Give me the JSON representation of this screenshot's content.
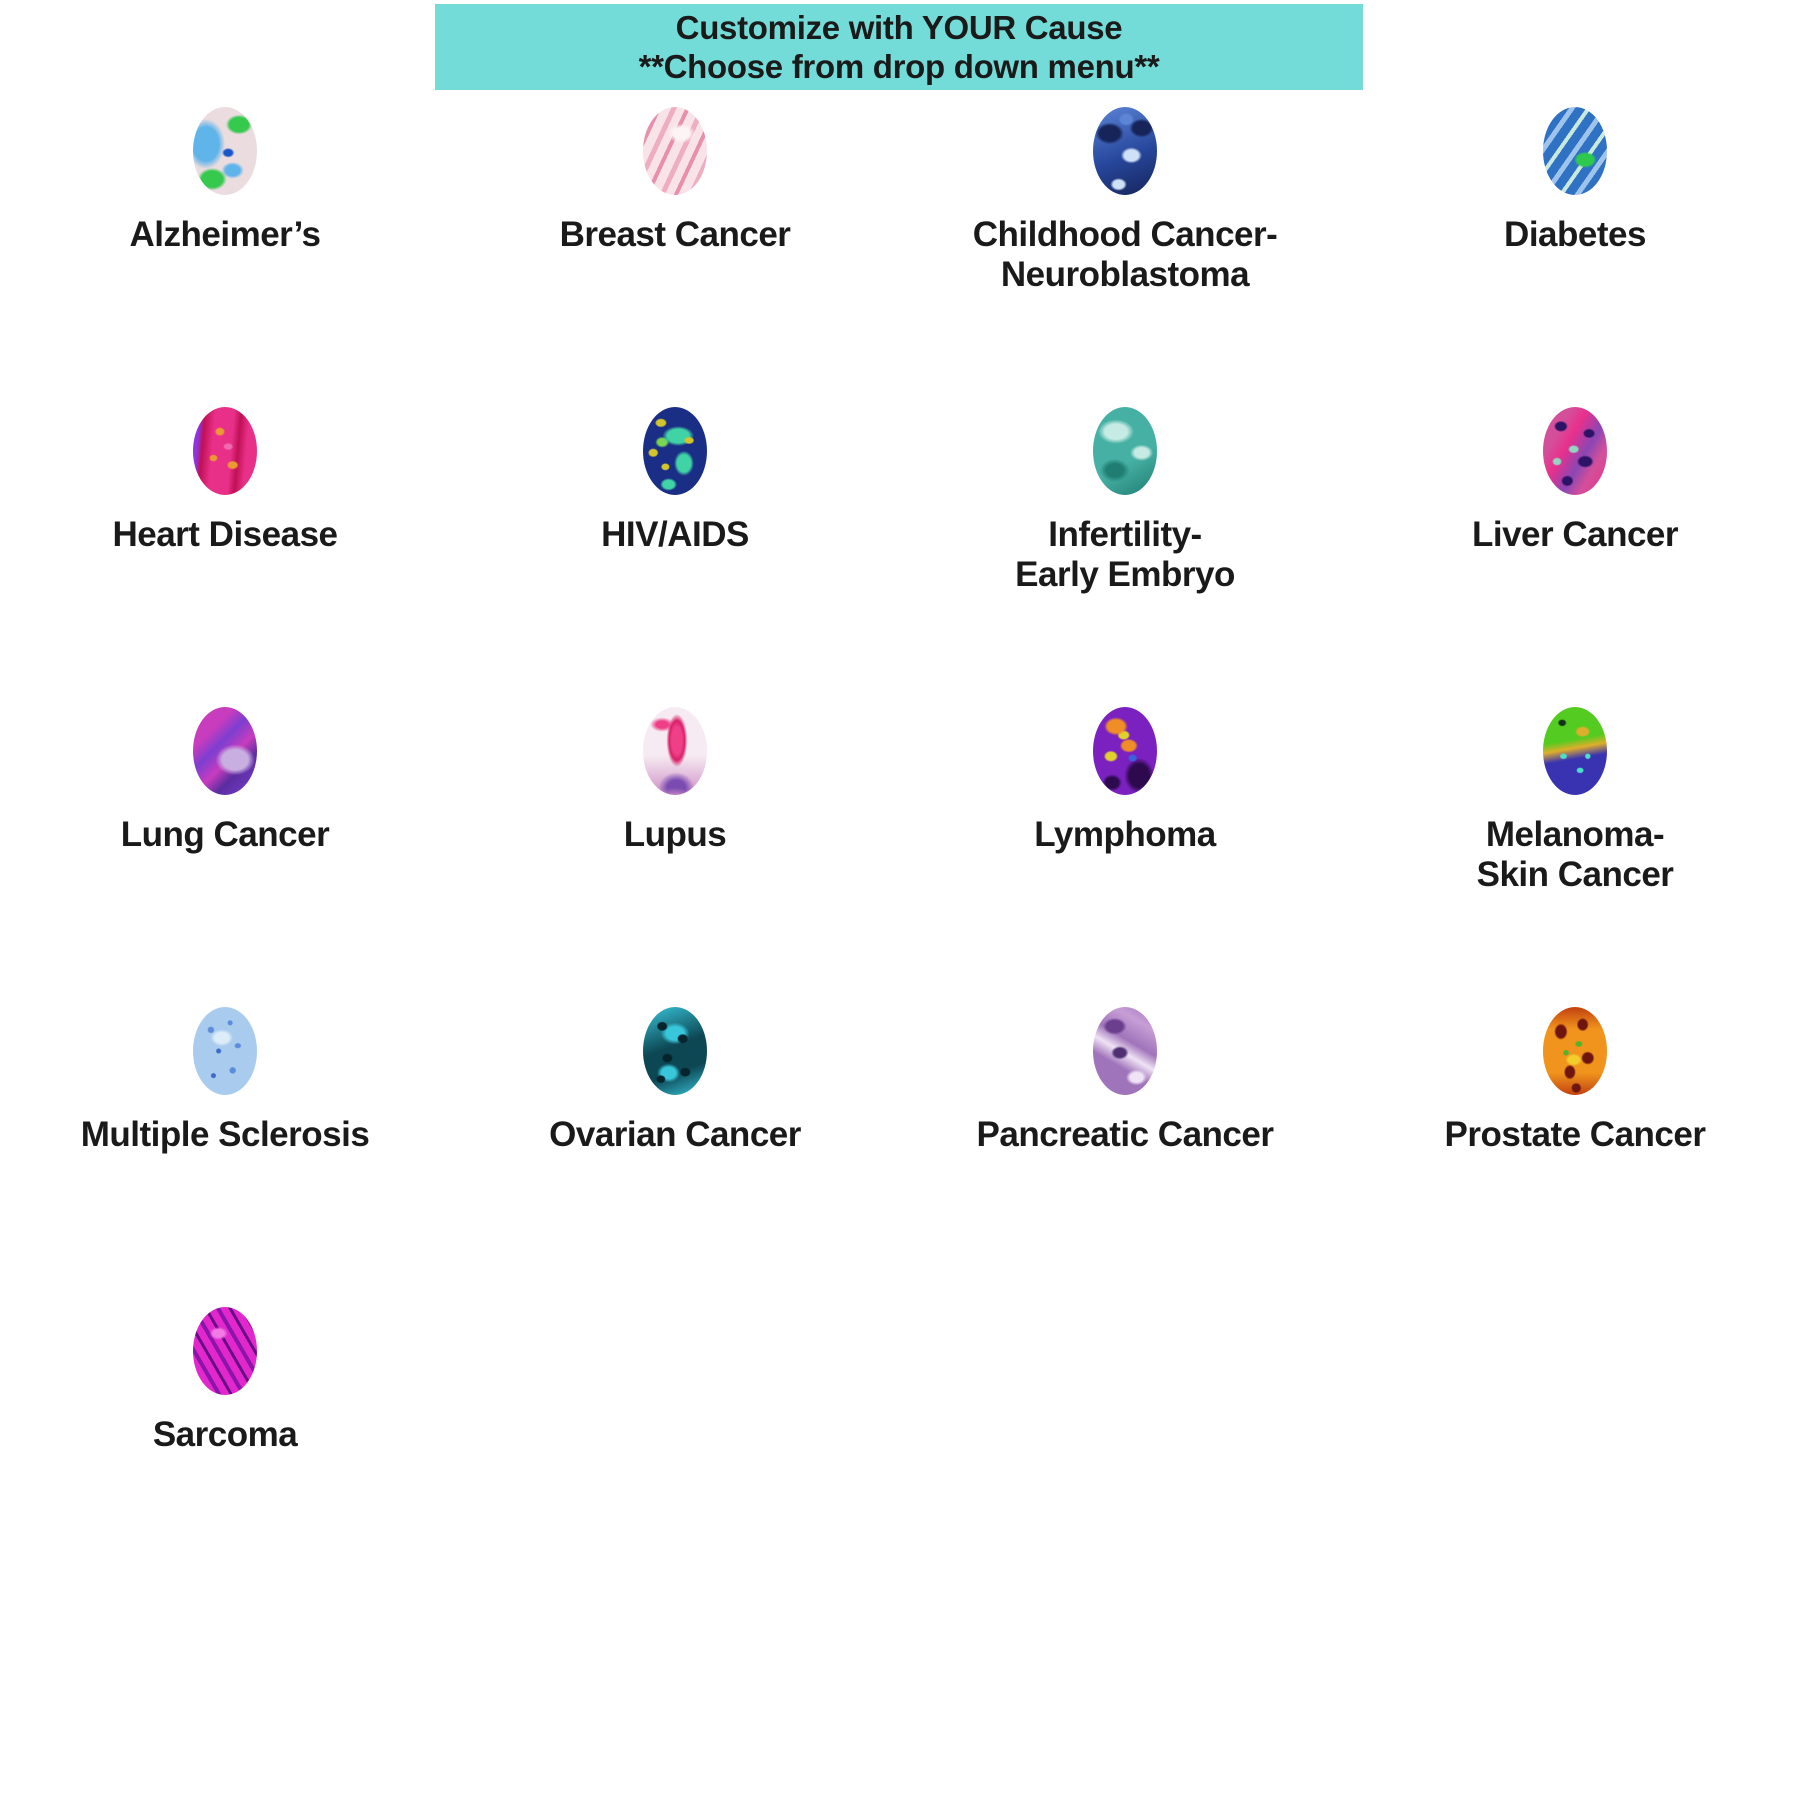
{
  "banner": {
    "line1": "Customize with YOUR Cause",
    "line2": "**Choose from drop down menu**",
    "colors": [
      "#74dcd8",
      "#1a1a1a"
    ]
  },
  "causes": [
    {
      "id": "alzheimers",
      "label": "Alzheimer’s",
      "image": "alzheimers-tissue-micrograph",
      "colors": [
        "#eadcdf",
        "#35c94d",
        "#5fb4ea",
        "#1b55c8",
        "#8fe8b0"
      ]
    },
    {
      "id": "breast-cancer",
      "label": "Breast Cancer",
      "image": "breast-cancer-tissue-micrograph",
      "colors": [
        "#f8e3e9",
        "#efadc2",
        "#e78fab",
        "#fdf4f6"
      ]
    },
    {
      "id": "childhood-cancer-neuroblastoma",
      "label": "Childhood Cancer-\nNeuroblastoma",
      "image": "neuroblastoma-tissue-micrograph",
      "colors": [
        "#27479c",
        "#16245a",
        "#cfe1f7",
        "#5c85d6"
      ]
    },
    {
      "id": "diabetes",
      "label": "Diabetes",
      "image": "diabetes-tissue-micrograph",
      "colors": [
        "#2f72c4",
        "#c9e9de",
        "#2ec84e",
        "#9fc4ec"
      ]
    },
    {
      "id": "heart-disease",
      "label": "Heart Disease",
      "image": "heart-disease-tissue-micrograph",
      "colors": [
        "#e93089",
        "#eb9a31",
        "#8d36e0",
        "#c01055",
        "#f06ab0"
      ]
    },
    {
      "id": "hiv-aids",
      "label": "HIV/AIDS",
      "image": "hiv-virus-micrograph",
      "colors": [
        "#1b2e85",
        "#3fd3a6",
        "#7ad551",
        "#d3c52c"
      ]
    },
    {
      "id": "infertility-early-embryo",
      "label": "Infertility-\nEarly Embryo",
      "image": "early-embryo-micrograph",
      "colors": [
        "#46b0a4",
        "#c6ebe4",
        "#1f7d72"
      ]
    },
    {
      "id": "liver-cancer",
      "label": "Liver Cancer",
      "image": "liver-cancer-tissue-micrograph",
      "colors": [
        "#d44f9a",
        "#e8308c",
        "#2d1366",
        "#94d6c2",
        "#8a46b4"
      ]
    },
    {
      "id": "lung-cancer",
      "label": "Lung Cancer",
      "image": "lung-cancer-tissue-micrograph",
      "colors": [
        "#c83cbe",
        "#7c3ed0",
        "#5a2da0",
        "#c9aee2"
      ]
    },
    {
      "id": "lupus",
      "label": "Lupus",
      "image": "lupus-tissue-micrograph",
      "colors": [
        "#f6ebf2",
        "#ee3f87",
        "#d92069",
        "#7a4cb2",
        "#cf8fc6"
      ]
    },
    {
      "id": "lymphoma",
      "label": "Lymphoma",
      "image": "lymphoma-tissue-micrograph",
      "colors": [
        "#7b21c0",
        "#ef8e27",
        "#e0d12c",
        "#2d0a4e",
        "#3a62dd"
      ]
    },
    {
      "id": "melanoma-skin-cancer",
      "label": "Melanoma-\nSkin Cancer",
      "image": "melanoma-tissue-micrograph",
      "colors": [
        "#54cb20",
        "#dfae2b",
        "#3933b2",
        "#4adfc8",
        "#163018"
      ]
    },
    {
      "id": "multiple-sclerosis",
      "label": "Multiple Sclerosis",
      "image": "multiple-sclerosis-tissue-micrograph",
      "colors": [
        "#a9ccee",
        "#5c8cdc",
        "#dcecf9",
        "#3f6ac6"
      ]
    },
    {
      "id": "ovarian-cancer",
      "label": "Ovarian Cancer",
      "image": "ovarian-cancer-tissue-micrograph",
      "colors": [
        "#0d4754",
        "#38c6da",
        "#66e2e8",
        "#05242c"
      ]
    },
    {
      "id": "pancreatic-cancer",
      "label": "Pancreatic Cancer",
      "image": "pancreatic-cancer-tissue-micrograph",
      "colors": [
        "#a074ba",
        "#f0e3f5",
        "#6b3e8e",
        "#4f2f72",
        "#c79ed6"
      ]
    },
    {
      "id": "prostate-cancer",
      "label": "Prostate Cancer",
      "image": "prostate-cancer-tissue-micrograph",
      "colors": [
        "#f0941d",
        "#6f150f",
        "#f2cd2b",
        "#56b229",
        "#c2410f"
      ]
    },
    {
      "id": "sarcoma",
      "label": "Sarcoma",
      "image": "sarcoma-tissue-micrograph",
      "colors": [
        "#e228cd",
        "#8d14a9",
        "#6b0c87",
        "#f27ae6"
      ]
    }
  ]
}
